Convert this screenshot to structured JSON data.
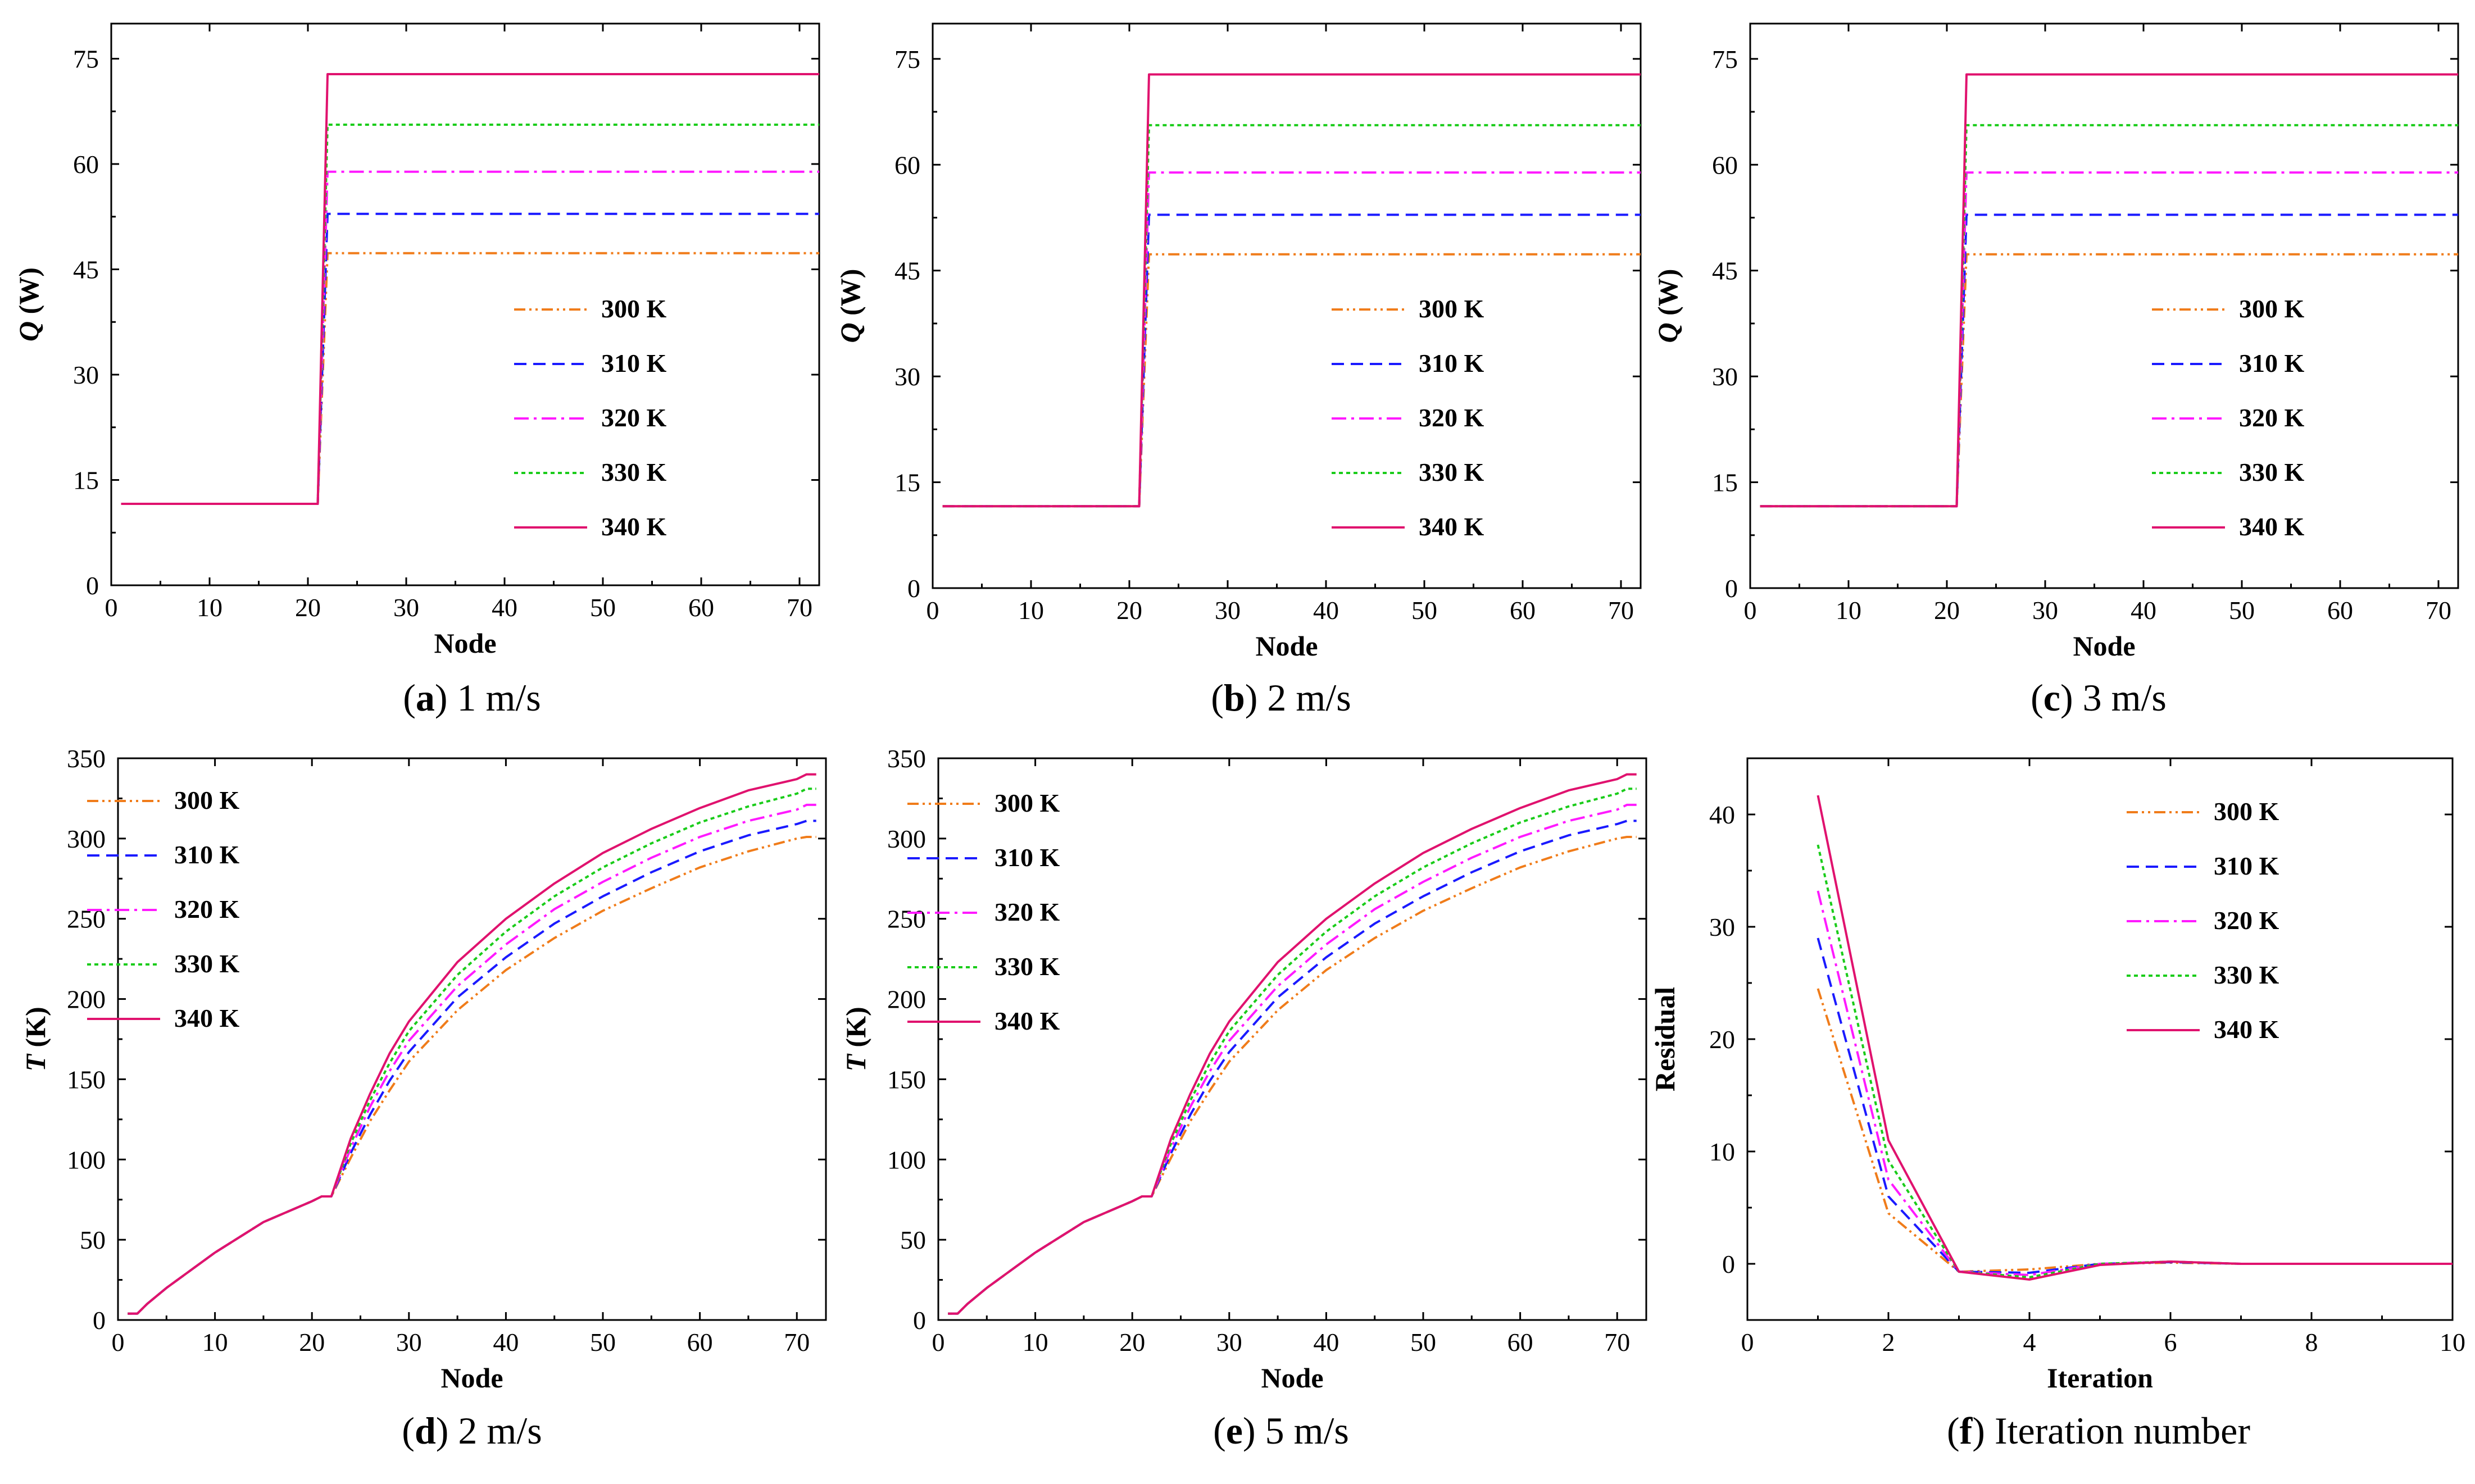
{
  "chart_data": [
    {
      "id": "a",
      "type": "line",
      "caption_letter": "a",
      "caption_text": "1 m/s",
      "xlabel": "Node",
      "ylabel": "Q (W)",
      "ylabel_italic": "Q",
      "ylabel_unit": " (W)",
      "xlim": [
        0,
        72
      ],
      "ylim": [
        0,
        80
      ],
      "xticks": [
        0,
        10,
        20,
        30,
        40,
        50,
        60,
        70
      ],
      "yticks": [
        0,
        15,
        30,
        45,
        60,
        75
      ],
      "legend_position": "center-right",
      "profile": "Q",
      "series": [
        {
          "name": "300 K",
          "color": "#f07c1a",
          "dash": "dash-dot-dot",
          "values": [
            11.6,
            47.3
          ]
        },
        {
          "name": "310 K",
          "color": "#1a1aff",
          "dash": "dashed",
          "values": [
            11.6,
            52.9
          ]
        },
        {
          "name": "320 K",
          "color": "#ff1aff",
          "dash": "dash-dot",
          "values": [
            11.6,
            58.9
          ]
        },
        {
          "name": "330 K",
          "color": "#1acc1a",
          "dash": "dotted",
          "values": [
            11.6,
            65.6
          ]
        },
        {
          "name": "340 K",
          "color": "#e0126e",
          "dash": "solid",
          "values": [
            11.6,
            72.8
          ]
        }
      ],
      "step_node": 21
    },
    {
      "id": "b",
      "type": "line",
      "caption_letter": "b",
      "caption_text": "2 m/s",
      "xlabel": "Node",
      "ylabel": "Q (W)",
      "ylabel_italic": "Q",
      "ylabel_unit": " (W)",
      "xlim": [
        0,
        72
      ],
      "ylim": [
        0,
        80
      ],
      "xticks": [
        0,
        10,
        20,
        30,
        40,
        50,
        60,
        70
      ],
      "yticks": [
        0,
        15,
        30,
        45,
        60,
        75
      ],
      "legend_position": "center-right",
      "profile": "Q",
      "series": [
        {
          "name": "300 K",
          "color": "#f07c1a",
          "dash": "dash-dot-dot",
          "values": [
            11.6,
            47.3
          ]
        },
        {
          "name": "310 K",
          "color": "#1a1aff",
          "dash": "dashed",
          "values": [
            11.6,
            52.9
          ]
        },
        {
          "name": "320 K",
          "color": "#ff1aff",
          "dash": "dash-dot",
          "values": [
            11.6,
            58.9
          ]
        },
        {
          "name": "330 K",
          "color": "#1acc1a",
          "dash": "dotted",
          "values": [
            11.6,
            65.6
          ]
        },
        {
          "name": "340 K",
          "color": "#e0126e",
          "dash": "solid",
          "values": [
            11.6,
            72.8
          ]
        }
      ],
      "step_node": 21
    },
    {
      "id": "c",
      "type": "line",
      "caption_letter": "c",
      "caption_text": "3 m/s",
      "xlabel": "Node",
      "ylabel": "Q (W)",
      "ylabel_italic": "Q",
      "ylabel_unit": " (W)",
      "xlim": [
        0,
        72
      ],
      "ylim": [
        0,
        80
      ],
      "xticks": [
        0,
        10,
        20,
        30,
        40,
        50,
        60,
        70
      ],
      "yticks": [
        0,
        15,
        30,
        45,
        60,
        75
      ],
      "legend_position": "center-right",
      "profile": "Q",
      "series": [
        {
          "name": "300 K",
          "color": "#f07c1a",
          "dash": "dash-dot-dot",
          "values": [
            11.6,
            47.3
          ]
        },
        {
          "name": "310 K",
          "color": "#1a1aff",
          "dash": "dashed",
          "values": [
            11.6,
            52.9
          ]
        },
        {
          "name": "320 K",
          "color": "#ff1aff",
          "dash": "dash-dot",
          "values": [
            11.6,
            58.9
          ]
        },
        {
          "name": "330 K",
          "color": "#1acc1a",
          "dash": "dotted",
          "values": [
            11.6,
            65.6
          ]
        },
        {
          "name": "340 K",
          "color": "#e0126e",
          "dash": "solid",
          "values": [
            11.6,
            72.8
          ]
        }
      ],
      "step_node": 21
    },
    {
      "id": "d",
      "type": "line",
      "caption_letter": "d",
      "caption_text": "2 m/s",
      "xlabel": "Node",
      "ylabel": "T (K)",
      "ylabel_italic": "T",
      "ylabel_unit": " (K)",
      "xlim": [
        0,
        73
      ],
      "ylim": [
        0,
        350
      ],
      "xticks": [
        0,
        10,
        20,
        30,
        40,
        50,
        60,
        70
      ],
      "yticks": [
        0,
        50,
        100,
        150,
        200,
        250,
        300,
        350
      ],
      "legend_position": "top-left",
      "profile": "T",
      "x": [
        1,
        2,
        3,
        5,
        10,
        15,
        20,
        21,
        22,
        24,
        26,
        28,
        30,
        35,
        40,
        45,
        50,
        55,
        60,
        65,
        70,
        71,
        72
      ],
      "series": [
        {
          "name": "300 K",
          "color": "#f07c1a",
          "dash": "dash-dot-dot",
          "values": [
            4,
            4,
            10,
            20,
            42,
            61,
            74,
            77,
            77,
            101,
            124,
            143,
            161,
            193,
            218,
            238,
            255,
            269,
            282,
            292,
            300,
            301,
            301
          ]
        },
        {
          "name": "310 K",
          "color": "#1a1aff",
          "dash": "dashed",
          "values": [
            4,
            4,
            10,
            20,
            42,
            61,
            74,
            77,
            77,
            104,
            128,
            149,
            167,
            201,
            226,
            247,
            264,
            279,
            292,
            302,
            309,
            311,
            311
          ]
        },
        {
          "name": "320 K",
          "color": "#ff1aff",
          "dash": "dash-dot",
          "values": [
            4,
            4,
            10,
            20,
            42,
            61,
            74,
            77,
            77,
            107,
            133,
            155,
            174,
            208,
            234,
            256,
            273,
            288,
            301,
            311,
            318,
            321,
            321
          ]
        },
        {
          "name": "330 K",
          "color": "#1acc1a",
          "dash": "dotted",
          "values": [
            4,
            4,
            10,
            20,
            42,
            61,
            74,
            77,
            77,
            110,
            137,
            160,
            180,
            215,
            242,
            264,
            282,
            297,
            310,
            320,
            328,
            331,
            331
          ]
        },
        {
          "name": "340 K",
          "color": "#e0126e",
          "dash": "solid",
          "values": [
            4,
            4,
            10,
            20,
            42,
            61,
            74,
            77,
            77,
            113,
            141,
            166,
            186,
            223,
            250,
            272,
            291,
            306,
            319,
            330,
            337,
            340,
            340
          ]
        }
      ]
    },
    {
      "id": "e",
      "type": "line",
      "caption_letter": "e",
      "caption_text": "5 m/s",
      "xlabel": "Node",
      "ylabel": "T (K)",
      "ylabel_italic": "T",
      "ylabel_unit": " (K)",
      "xlim": [
        0,
        73
      ],
      "ylim": [
        0,
        350
      ],
      "xticks": [
        0,
        10,
        20,
        30,
        40,
        50,
        60,
        70
      ],
      "yticks": [
        0,
        50,
        100,
        150,
        200,
        250,
        300,
        350
      ],
      "legend_position": "top-left",
      "profile": "T",
      "x": [
        1,
        2,
        3,
        5,
        10,
        15,
        20,
        21,
        22,
        24,
        26,
        28,
        30,
        35,
        40,
        45,
        50,
        55,
        60,
        65,
        70,
        71,
        72
      ],
      "series": [
        {
          "name": "300 K",
          "color": "#f07c1a",
          "dash": "dash-dot-dot",
          "values": [
            4,
            4,
            10,
            20,
            42,
            61,
            74,
            77,
            77,
            101,
            124,
            143,
            161,
            193,
            218,
            238,
            255,
            269,
            282,
            292,
            300,
            301,
            301
          ]
        },
        {
          "name": "310 K",
          "color": "#1a1aff",
          "dash": "dashed",
          "values": [
            4,
            4,
            10,
            20,
            42,
            61,
            74,
            77,
            77,
            104,
            128,
            149,
            167,
            201,
            226,
            247,
            264,
            279,
            292,
            302,
            309,
            311,
            311
          ]
        },
        {
          "name": "320 K",
          "color": "#ff1aff",
          "dash": "dash-dot",
          "values": [
            4,
            4,
            10,
            20,
            42,
            61,
            74,
            77,
            77,
            107,
            133,
            155,
            174,
            208,
            234,
            256,
            273,
            288,
            301,
            311,
            318,
            321,
            321
          ]
        },
        {
          "name": "330 K",
          "color": "#1acc1a",
          "dash": "dotted",
          "values": [
            4,
            4,
            10,
            20,
            42,
            61,
            74,
            77,
            77,
            110,
            137,
            160,
            180,
            215,
            242,
            264,
            282,
            297,
            310,
            320,
            328,
            331,
            331
          ]
        },
        {
          "name": "340 K",
          "color": "#e0126e",
          "dash": "solid",
          "values": [
            4,
            4,
            10,
            20,
            42,
            61,
            74,
            77,
            77,
            113,
            141,
            166,
            186,
            223,
            250,
            272,
            291,
            306,
            319,
            330,
            337,
            340,
            340
          ]
        }
      ]
    },
    {
      "id": "f",
      "type": "line",
      "caption_letter": "f",
      "caption_text": "Iteration number",
      "xlabel": "Iteration",
      "ylabel": "Residual",
      "ylabel_italic": "",
      "ylabel_unit": "Residual",
      "xlim": [
        0,
        10
      ],
      "ylim": [
        -5,
        45
      ],
      "xticks": [
        0,
        2,
        4,
        6,
        8,
        10
      ],
      "yticks": [
        0,
        10,
        20,
        30,
        40
      ],
      "legend_position": "top-right",
      "profile": "R",
      "x": [
        1,
        2,
        3,
        4,
        5,
        6,
        7,
        8,
        9,
        10
      ],
      "series": [
        {
          "name": "300 K",
          "color": "#f07c1a",
          "dash": "dash-dot-dot",
          "values": [
            24.5,
            4.5,
            -0.7,
            -0.5,
            0,
            0.1,
            0,
            0,
            0,
            0
          ]
        },
        {
          "name": "310 K",
          "color": "#1a1aff",
          "dash": "dashed",
          "values": [
            29,
            6.0,
            -0.7,
            -0.8,
            0,
            0.15,
            0,
            0,
            0,
            0
          ]
        },
        {
          "name": "320 K",
          "color": "#ff1aff",
          "dash": "dash-dot",
          "values": [
            33.2,
            7.5,
            -0.7,
            -1.0,
            0,
            0.2,
            0,
            0,
            0,
            0
          ]
        },
        {
          "name": "330 K",
          "color": "#1acc1a",
          "dash": "dotted",
          "values": [
            37.3,
            9.2,
            -0.7,
            -1.2,
            0,
            0.2,
            0,
            0,
            0,
            0
          ]
        },
        {
          "name": "340 K",
          "color": "#e0126e",
          "dash": "solid",
          "values": [
            41.7,
            11.0,
            -0.7,
            -1.4,
            -0.1,
            0.2,
            0,
            0,
            0,
            0
          ]
        }
      ]
    }
  ]
}
